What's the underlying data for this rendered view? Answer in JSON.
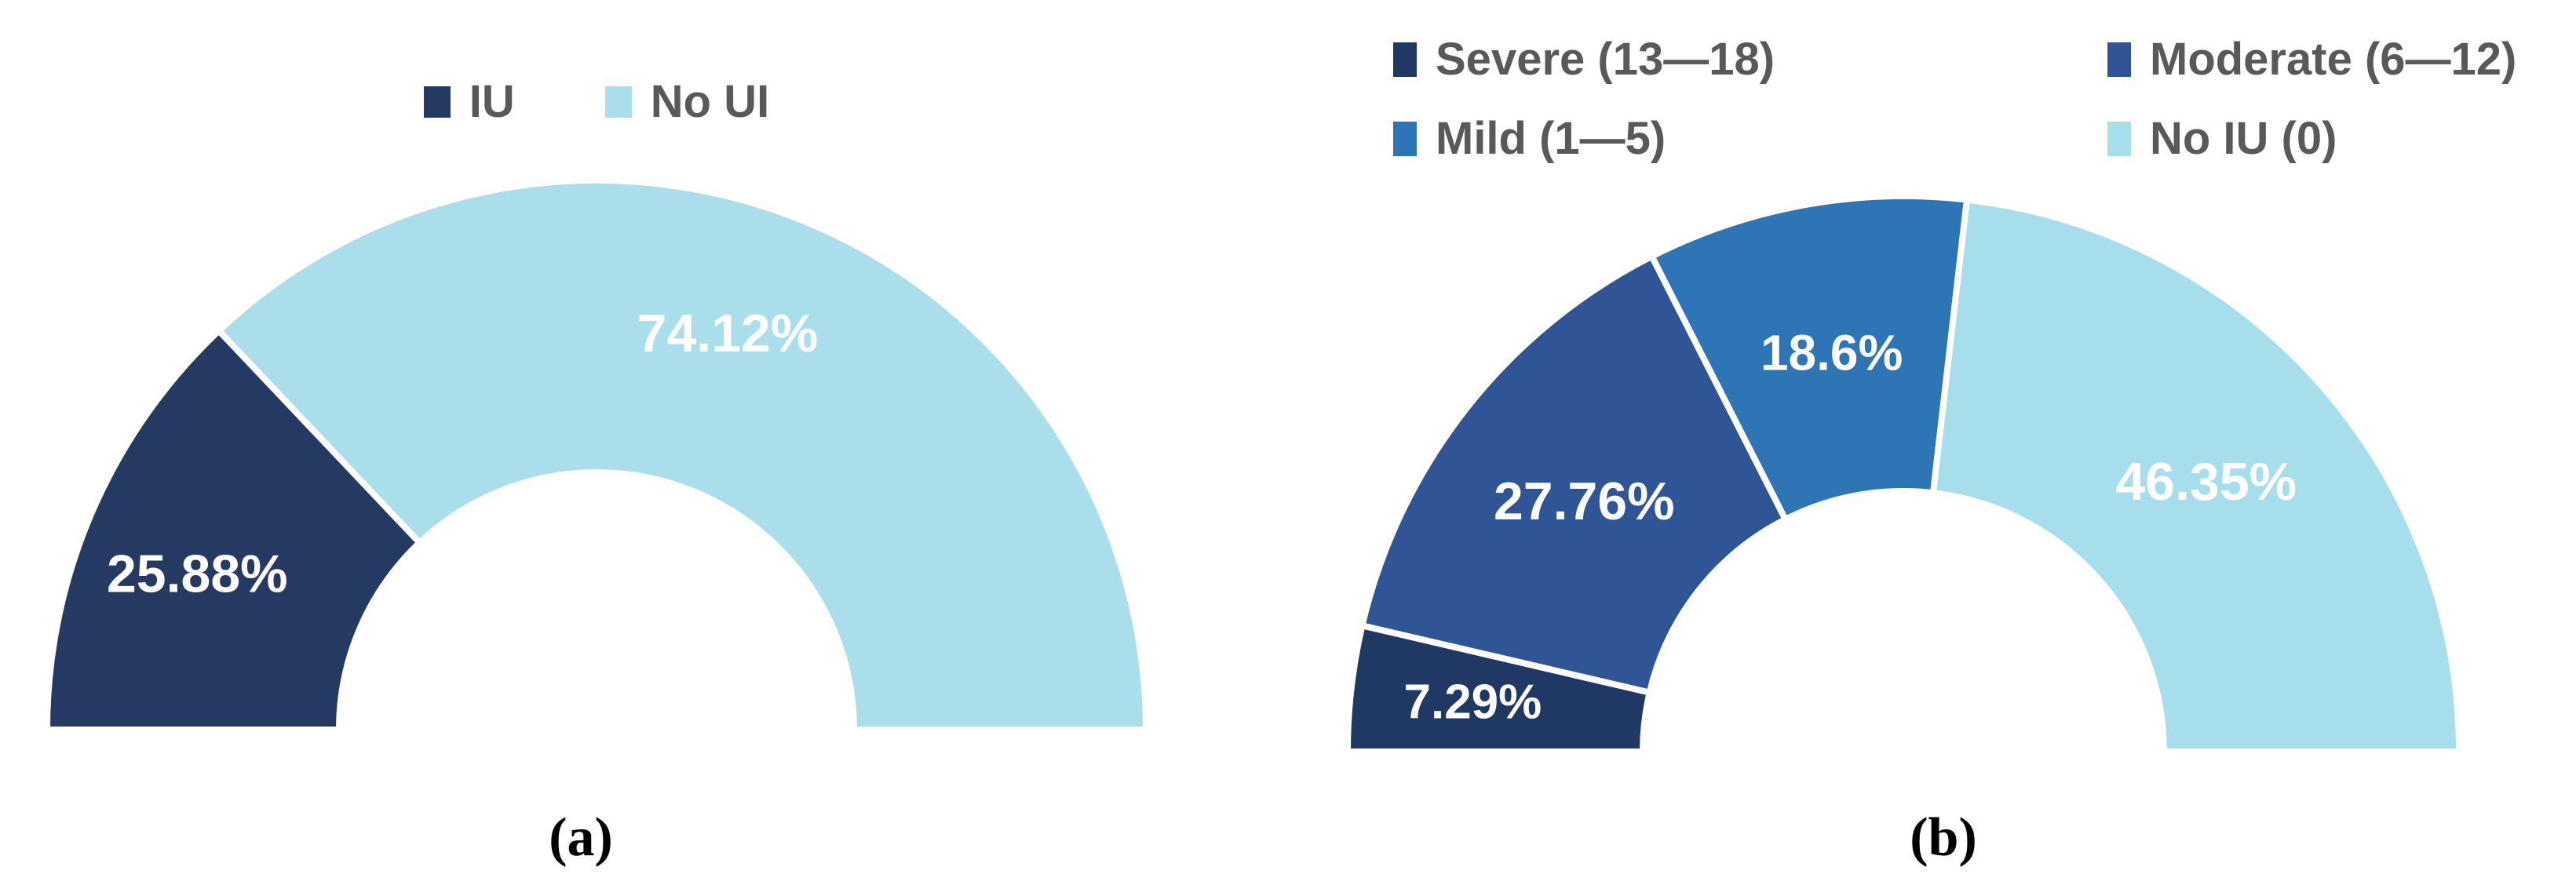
{
  "figure": {
    "background": "#FFFFFF",
    "legend_text_color": "#595959",
    "caption_color": "#000000",
    "data_label_color": "#FFFFFF"
  },
  "chart_data": [
    {
      "type": "pie",
      "subtype": "half-donut",
      "title": "",
      "caption": "(a)",
      "categories": [
        "IU",
        "No UI"
      ],
      "values": [
        25.88,
        74.12
      ],
      "data_labels": [
        "25.88%",
        "74.12%"
      ],
      "colors": [
        "#243A62",
        "#A9DEEA"
      ],
      "legend": [
        "IU",
        "No UI"
      ],
      "legend_position": "top-center",
      "start_angle_deg": 180,
      "end_angle_deg": 0,
      "label_color": "#FFFFFF"
    },
    {
      "type": "pie",
      "subtype": "half-donut",
      "title": "",
      "caption": "(b)",
      "categories": [
        "Severe (13—18)",
        "Moderate (6—12)",
        "Mild (1—5)",
        "No IU (0)"
      ],
      "values": [
        7.29,
        27.76,
        18.6,
        46.35
      ],
      "data_labels": [
        "7.29%",
        "27.76%",
        "18.6%",
        "46.35%"
      ],
      "colors": [
        "#1F3864",
        "#2F5597",
        "#2E75B6",
        "#A6DEEB"
      ],
      "legend": [
        "Severe (13—18)",
        "Moderate (6—12)",
        "Mild (1—5)",
        "No IU (0)"
      ],
      "legend_position": "top-two-columns",
      "start_angle_deg": 180,
      "end_angle_deg": 0,
      "label_color": "#FFFFFF"
    }
  ]
}
